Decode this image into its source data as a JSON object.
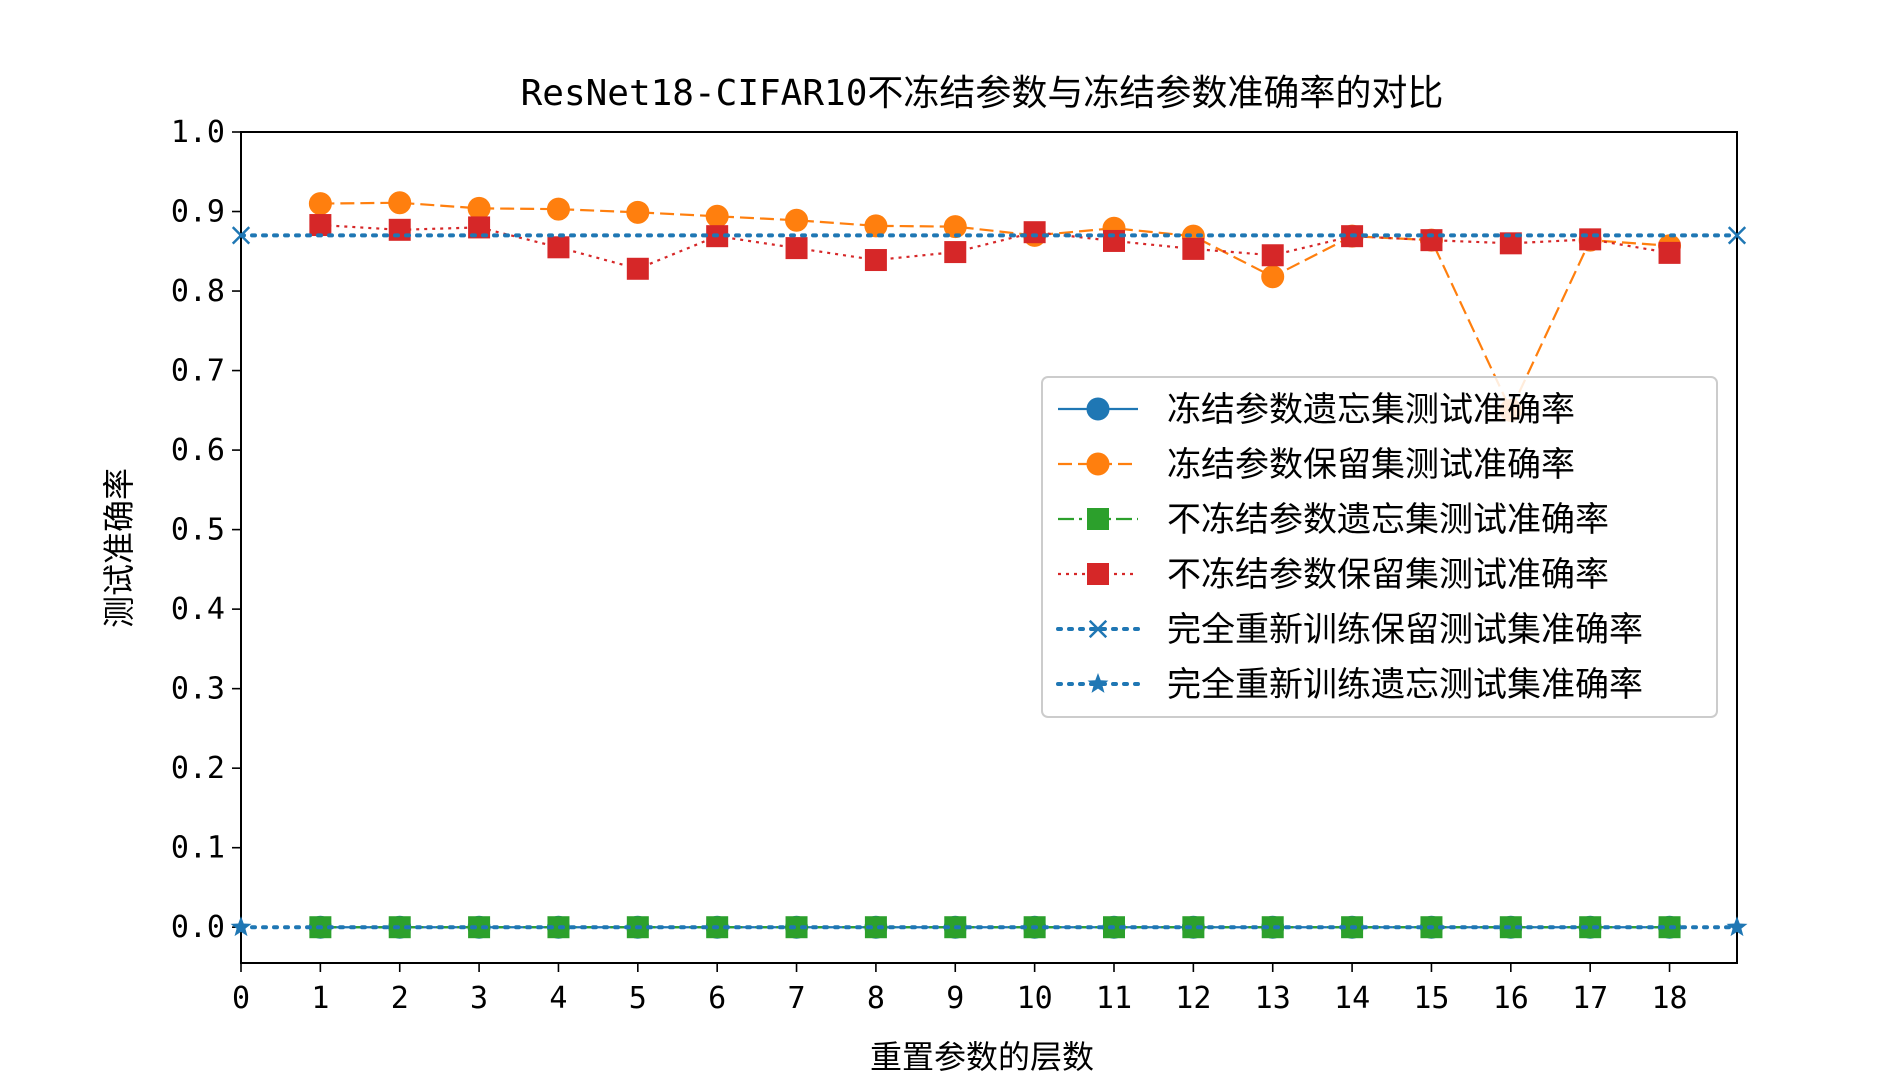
{
  "chart_data": {
    "type": "line",
    "title": "ResNet18-CIFAR10不冻结参数与冻结参数准确率的对比",
    "xlabel": "重置参数的层数",
    "ylabel": "测试准确率",
    "xlim": [
      0,
      18.85
    ],
    "ylim": [
      -0.045,
      1.0
    ],
    "xticks": [
      "0",
      "1",
      "2",
      "3",
      "4",
      "5",
      "6",
      "7",
      "8",
      "9",
      "10",
      "11",
      "12",
      "13",
      "14",
      "15",
      "16",
      "17",
      "18"
    ],
    "yticks": [
      "0.0",
      "0.1",
      "0.2",
      "0.3",
      "0.4",
      "0.5",
      "0.6",
      "0.7",
      "0.8",
      "0.9",
      "1.0"
    ],
    "grid": false,
    "legend_position": "center-right",
    "x": [
      1,
      2,
      3,
      4,
      5,
      6,
      7,
      8,
      9,
      10,
      11,
      12,
      13,
      14,
      15,
      16,
      17,
      18
    ],
    "series": [
      {
        "name": "冻结参数遗忘集测试准确率",
        "color": "#1f77b4",
        "linestyle": "solid",
        "marker": "circle",
        "values": [
          0,
          0,
          0,
          0,
          0,
          0,
          0,
          0,
          0,
          0,
          0,
          0,
          0,
          0,
          0,
          0,
          0,
          0
        ]
      },
      {
        "name": "冻结参数保留集测试准确率",
        "color": "#ff7f0e",
        "linestyle": "dashed",
        "marker": "circle",
        "values": [
          0.91,
          0.911,
          0.904,
          0.903,
          0.899,
          0.894,
          0.889,
          0.882,
          0.881,
          0.87,
          0.879,
          0.869,
          0.818,
          0.869,
          0.864,
          0.65,
          0.864,
          0.857
        ]
      },
      {
        "name": "不冻结参数遗忘集测试准确率",
        "color": "#2ca02c",
        "linestyle": "dashdot",
        "marker": "square",
        "values": [
          0,
          0,
          0,
          0,
          0,
          0,
          0,
          0,
          0,
          0,
          0,
          0,
          0,
          0,
          0,
          0,
          0,
          0
        ]
      },
      {
        "name": "不冻结参数保留集测试准确率",
        "color": "#d62728",
        "linestyle": "dotted",
        "marker": "square",
        "values": [
          0.883,
          0.877,
          0.88,
          0.855,
          0.828,
          0.869,
          0.854,
          0.839,
          0.849,
          0.874,
          0.863,
          0.853,
          0.845,
          0.869,
          0.864,
          0.86,
          0.865,
          0.848
        ]
      },
      {
        "name": "完全重新训练保留测试集准确率",
        "color": "#1f77b4",
        "linestyle": "dotted-thick",
        "marker": "x",
        "x": [
          0,
          18.85
        ],
        "values": [
          0.87,
          0.87
        ]
      },
      {
        "name": "完全重新训练遗忘测试集准确率",
        "color": "#1f77b4",
        "linestyle": "dotted-thick",
        "marker": "star",
        "x": [
          0,
          18.85
        ],
        "values": [
          0.0,
          0.0
        ]
      }
    ]
  }
}
